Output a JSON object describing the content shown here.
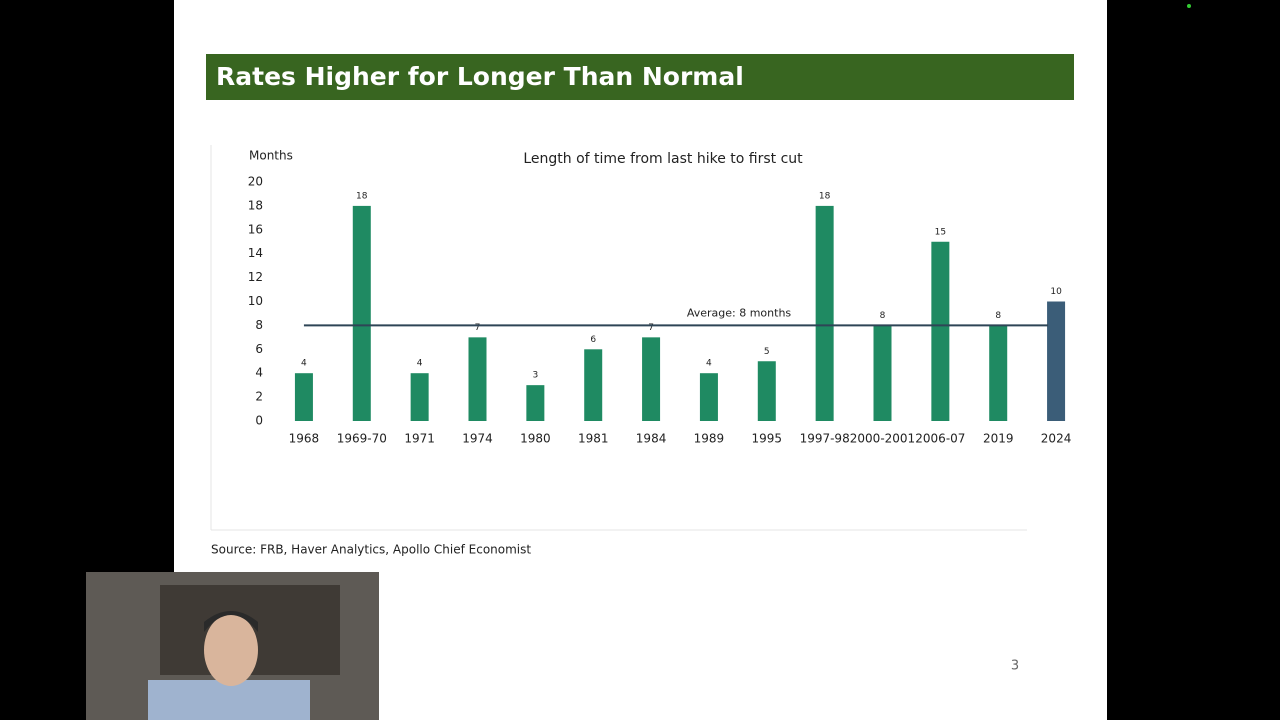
{
  "slide": {
    "title": "Rates Higher for Longer Than Normal",
    "source": "Source: FRB, Haver Analytics, Apollo Chief Economist",
    "page_number": "3"
  },
  "chart_data": {
    "type": "bar",
    "title": "Length of time from last hike to first cut",
    "y_label": "Months",
    "categories": [
      "1968",
      "1969-70",
      "1971",
      "1974",
      "1980",
      "1981",
      "1984",
      "1989",
      "1995",
      "1997-98",
      "2000-2001",
      "2006-07",
      "2019",
      "2024"
    ],
    "values": [
      4,
      18,
      4,
      7,
      3,
      6,
      7,
      4,
      5,
      18,
      8,
      15,
      8,
      10
    ],
    "colors": [
      "#1f8a62",
      "#1f8a62",
      "#1f8a62",
      "#1f8a62",
      "#1f8a62",
      "#1f8a62",
      "#1f8a62",
      "#1f8a62",
      "#1f8a62",
      "#1f8a62",
      "#1f8a62",
      "#1f8a62",
      "#1f8a62",
      "#3b5d78"
    ],
    "ylim": [
      0,
      20
    ],
    "yticks": [
      0,
      2,
      4,
      6,
      8,
      10,
      12,
      14,
      16,
      18,
      20
    ],
    "grid": false,
    "average_line": {
      "value": 8,
      "label": "Average: 8 months"
    }
  }
}
